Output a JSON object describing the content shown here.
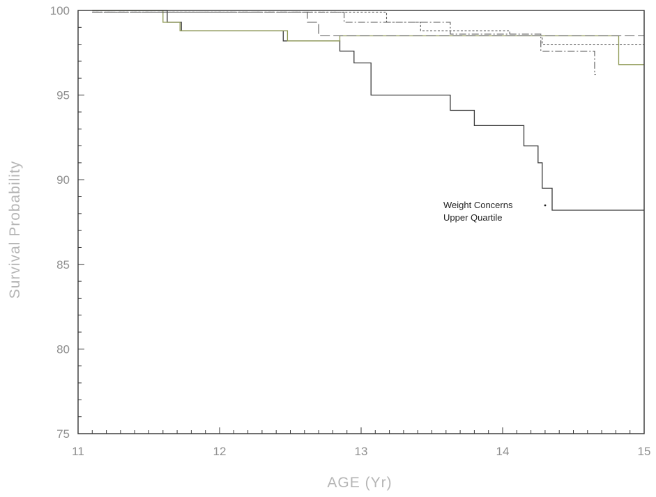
{
  "chart_data": {
    "type": "line",
    "title": "",
    "xlabel": "AGE (Yr)",
    "ylabel": "Survival Probability",
    "xlim": [
      11,
      15
    ],
    "ylim": [
      75,
      100
    ],
    "xticks": [
      11,
      12,
      13,
      14,
      15
    ],
    "yticks": [
      75,
      80,
      85,
      90,
      95,
      100
    ],
    "xtick_labels": [
      "11",
      "12",
      "13",
      "14",
      "15"
    ],
    "ytick_labels": [
      "75",
      "80",
      "85",
      "90",
      "95",
      "100"
    ],
    "grid": false,
    "legend": "none",
    "colors": {
      "axis": "#333333",
      "series_solid": "#3a3a3a",
      "series_green": "#8f9a55",
      "series_dash": "#555555",
      "tick_label": "#8f8f8f",
      "axis_title": "#b5b5b5"
    },
    "annotation": {
      "lines": [
        "Weight Concerns",
        "Upper Quartile"
      ],
      "x": 13.6,
      "y": 88.2
    },
    "series": [
      {
        "style": "solid",
        "x": [
          11.1,
          11.63,
          11.73,
          12.45,
          12.85,
          12.95,
          13.07,
          13.63,
          13.8,
          14.15,
          14.25,
          14.28,
          14.35,
          15.0
        ],
        "y": [
          100,
          99.3,
          98.8,
          98.2,
          97.6,
          96.9,
          95.0,
          94.1,
          93.2,
          92.0,
          91.0,
          89.5,
          88.2,
          88.2
        ]
      },
      {
        "style": "solid-green",
        "x": [
          11.1,
          11.6,
          11.72,
          12.48,
          12.85,
          14.82,
          15.0
        ],
        "y": [
          100,
          99.3,
          98.8,
          98.2,
          98.5,
          96.8,
          96.8
        ]
      },
      {
        "style": "dotted",
        "x": [
          11.1,
          12.92,
          13.18,
          13.42,
          14.05,
          14.28,
          15.0
        ],
        "y": [
          99.9,
          99.9,
          99.3,
          98.8,
          98.5,
          98.0,
          98.0
        ]
      },
      {
        "style": "dash-dot",
        "x": [
          11.1,
          12.62,
          12.88,
          13.63,
          14.27,
          14.65,
          14.66
        ],
        "y": [
          99.9,
          99.9,
          99.3,
          98.6,
          97.6,
          96.2,
          96.2
        ]
      },
      {
        "style": "long-dash",
        "x": [
          11.1,
          12.62,
          12.7,
          12.72,
          14.8,
          15.0
        ],
        "y": [
          99.9,
          99.3,
          98.5,
          98.5,
          98.5,
          98.5
        ]
      }
    ]
  }
}
